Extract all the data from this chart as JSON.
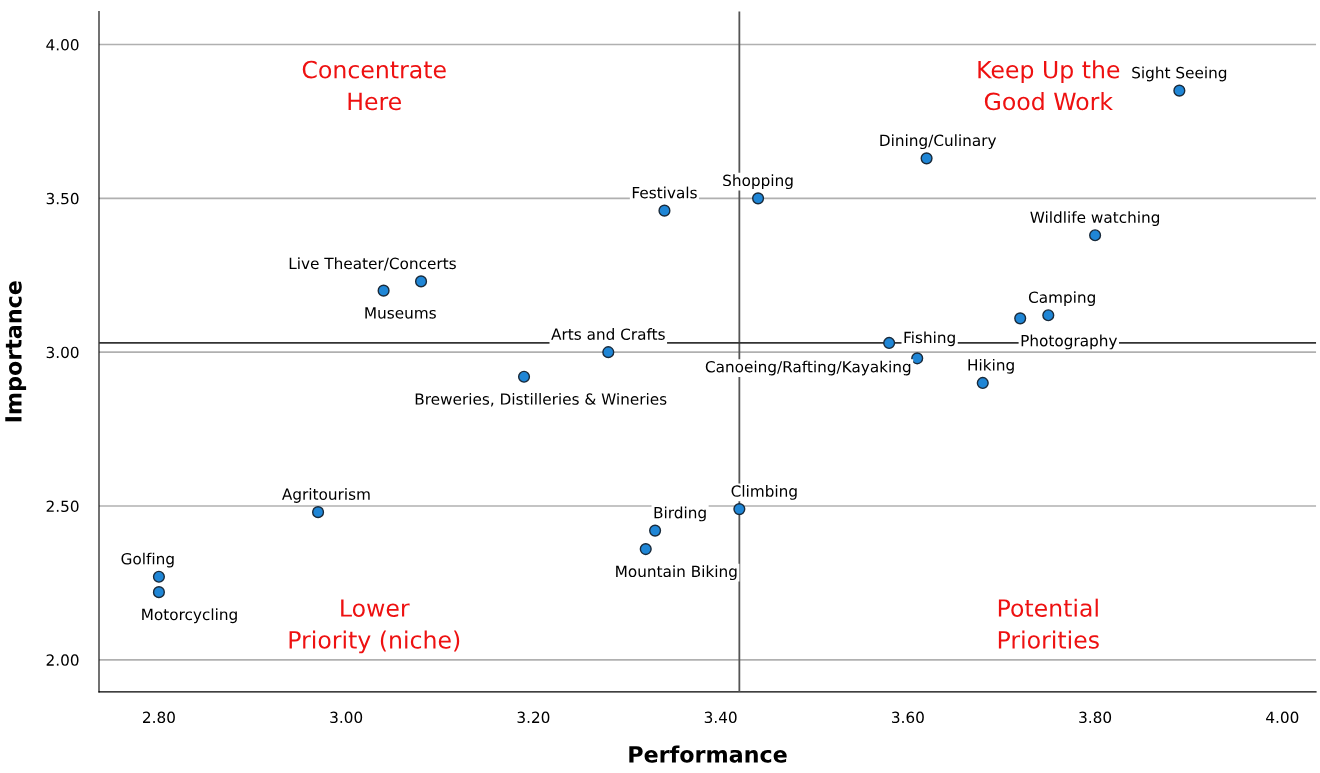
{
  "chart_data": {
    "type": "scatter",
    "xlabel": "Performance",
    "ylabel": "Importance",
    "xlim": [
      2.736,
      4.036
    ],
    "ylim": [
      1.896,
      4.107
    ],
    "xticks": [
      {
        "value": 2.8,
        "label": "2.80"
      },
      {
        "value": 3.0,
        "label": "3.00"
      },
      {
        "value": 3.2,
        "label": "3.20"
      },
      {
        "value": 3.4,
        "label": "3.40"
      },
      {
        "value": 3.6,
        "label": "3.60"
      },
      {
        "value": 3.8,
        "label": "3.80"
      },
      {
        "value": 4.0,
        "label": "4.00"
      }
    ],
    "yticks": [
      {
        "value": 2.0,
        "label": "2.00"
      },
      {
        "value": 2.5,
        "label": "2.50"
      },
      {
        "value": 3.0,
        "label": "3.00"
      },
      {
        "value": 3.5,
        "label": "3.50"
      },
      {
        "value": 4.0,
        "label": "4.00"
      }
    ],
    "grid": "y",
    "marker": "circle",
    "series": [
      {
        "color": "#1f86d6",
        "x": [
          3.89,
          3.62,
          3.44,
          3.34,
          3.8,
          3.08,
          3.04,
          3.75,
          3.72,
          3.28,
          3.58,
          3.61,
          3.68,
          3.19,
          2.97,
          3.42,
          3.33,
          3.32,
          2.8,
          2.8
        ],
        "values": [
          3.85,
          3.63,
          3.5,
          3.46,
          3.38,
          3.23,
          3.2,
          3.12,
          3.11,
          3.0,
          3.03,
          2.98,
          2.9,
          2.92,
          2.48,
          2.49,
          2.42,
          2.36,
          2.27,
          2.22
        ]
      }
    ],
    "ref_lines": [
      {
        "axis": "x",
        "value": 3.42,
        "color": "#555555"
      },
      {
        "axis": "y",
        "value": 3.03,
        "color": "#333333"
      }
    ],
    "annotations": [
      {
        "text": "Sight Seeing",
        "x": 3.89,
        "y": 3.85
      },
      {
        "text": "Dining/Culinary",
        "x": 3.62,
        "y": 3.63
      },
      {
        "text": "Shopping",
        "x": 3.44,
        "y": 3.5
      },
      {
        "text": "Festivals",
        "x": 3.34,
        "y": 3.46
      },
      {
        "text": "Wildlife watching",
        "x": 3.8,
        "y": 3.38
      },
      {
        "text": "Live Theater/Concerts",
        "x": 3.08,
        "y": 3.23
      },
      {
        "text": "Museums",
        "x": 3.04,
        "y": 3.2
      },
      {
        "text": "Camping",
        "x": 3.75,
        "y": 3.12
      },
      {
        "text": "Photography",
        "x": 3.72,
        "y": 3.11
      },
      {
        "text": "Arts and Crafts",
        "x": 3.28,
        "y": 3.0
      },
      {
        "text": "Fishing",
        "x": 3.58,
        "y": 3.03
      },
      {
        "text": "Canoeing/Rafting/Kayaking",
        "x": 3.61,
        "y": 2.98
      },
      {
        "text": "Hiking",
        "x": 3.68,
        "y": 2.9
      },
      {
        "text": "Breweries, Distilleries & Wineries",
        "x": 3.19,
        "y": 2.92
      },
      {
        "text": "Agritourism",
        "x": 2.97,
        "y": 2.48
      },
      {
        "text": "Climbing",
        "x": 3.42,
        "y": 2.49
      },
      {
        "text": "Birding",
        "x": 3.33,
        "y": 2.42
      },
      {
        "text": "Mountain Biking",
        "x": 3.32,
        "y": 2.36
      },
      {
        "text": "Golfing",
        "x": 2.8,
        "y": 2.27
      },
      {
        "text": "Motorcycling",
        "x": 2.8,
        "y": 2.22
      },
      "Concentrate\nHere",
      "Keep Up the\nGood Work",
      "Lower\nPriority (niche)",
      "Potential\nPriorities"
    ]
  }
}
